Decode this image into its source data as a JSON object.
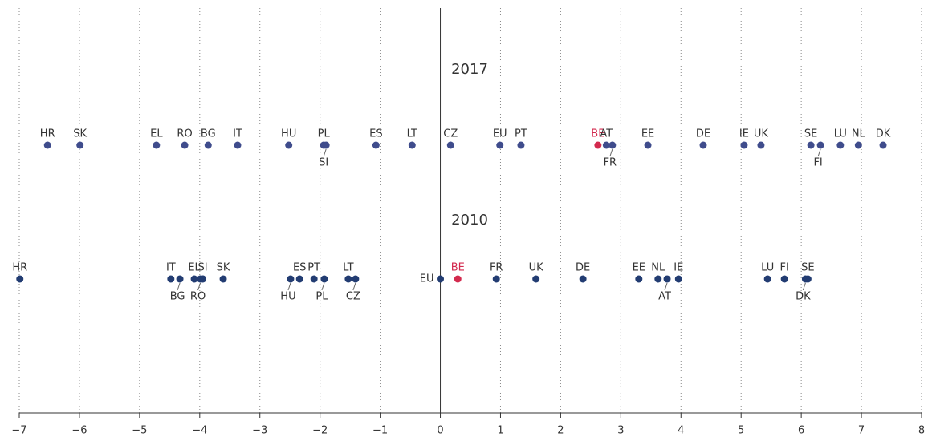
{
  "chart_data": {
    "type": "dot",
    "xlim": [
      -7,
      8
    ],
    "xticks": [
      {
        "value": -7,
        "label": "−7"
      },
      {
        "value": -6,
        "label": "−6"
      },
      {
        "value": -5,
        "label": "−5"
      },
      {
        "value": -4,
        "label": "−4"
      },
      {
        "value": -3,
        "label": "−3"
      },
      {
        "value": -2,
        "label": "−2"
      },
      {
        "value": -1,
        "label": "−1"
      },
      0,
      1,
      2,
      3,
      4,
      5,
      6,
      7,
      8
    ],
    "grid": true,
    "series": [
      {
        "name": "2017",
        "color": "#3f4c8c",
        "labels": [
          "HR",
          "SK",
          "EL",
          "RO",
          "BG",
          "IT",
          "HU",
          "PL",
          "SI",
          "ES",
          "LT",
          "CZ",
          "EU",
          "PT",
          "BE",
          "AT",
          "FR",
          "EE",
          "DE",
          "IE",
          "UK",
          "SE",
          "FI",
          "LU",
          "NL",
          "DK"
        ],
        "values": [
          -6.53,
          -5.99,
          -4.72,
          -4.25,
          -3.86,
          -3.37,
          -2.52,
          -1.94,
          -1.9,
          -1.07,
          -0.47,
          0.17,
          0.99,
          1.34,
          2.62,
          2.76,
          2.86,
          3.45,
          4.37,
          5.05,
          5.33,
          6.16,
          6.32,
          6.65,
          6.95,
          7.36
        ],
        "colors": [
          "#3f4c8c",
          "#3f4c8c",
          "#3f4c8c",
          "#3f4c8c",
          "#3f4c8c",
          "#3f4c8c",
          "#3f4c8c",
          "#3f4c8c",
          "#3f4c8c",
          "#3f4c8c",
          "#3f4c8c",
          "#3f4c8c",
          "#3f4c8c",
          "#3f4c8c",
          "#d32a4e",
          "#3f4c8c",
          "#3f4c8c",
          "#3f4c8c",
          "#3f4c8c",
          "#3f4c8c",
          "#3f4c8c",
          "#3f4c8c",
          "#3f4c8c",
          "#3f4c8c",
          "#3f4c8c",
          "#3f4c8c"
        ]
      },
      {
        "name": "2010",
        "color": "#223c72",
        "labels": [
          "HR",
          "IT",
          "BG",
          "EL",
          "RO",
          "SI",
          "SK",
          "HU",
          "ES",
          "PT",
          "PL",
          "LT",
          "CZ",
          "EU",
          "BE",
          "FR",
          "UK",
          "DE",
          "EE",
          "NL",
          "AT",
          "IE",
          "LU",
          "FI",
          "DK",
          "SE"
        ],
        "values": [
          -6.99,
          -4.48,
          -4.33,
          -4.09,
          -3.99,
          -3.95,
          -3.61,
          -2.49,
          -2.34,
          -2.1,
          -1.93,
          -1.53,
          -1.41,
          0,
          0.29,
          0.93,
          1.59,
          2.37,
          3.3,
          3.62,
          3.77,
          3.96,
          5.44,
          5.72,
          6.07,
          6.11
        ],
        "colors": [
          "#223c72",
          "#223c72",
          "#223c72",
          "#223c72",
          "#223c72",
          "#223c72",
          "#223c72",
          "#223c72",
          "#223c72",
          "#223c72",
          "#223c72",
          "#223c72",
          "#223c72",
          "#223c72",
          "#d32a4e",
          "#223c72",
          "#223c72",
          "#223c72",
          "#223c72",
          "#223c72",
          "#223c72",
          "#223c72",
          "#223c72",
          "#223c72",
          "#223c72",
          "#223c72"
        ]
      }
    ]
  }
}
